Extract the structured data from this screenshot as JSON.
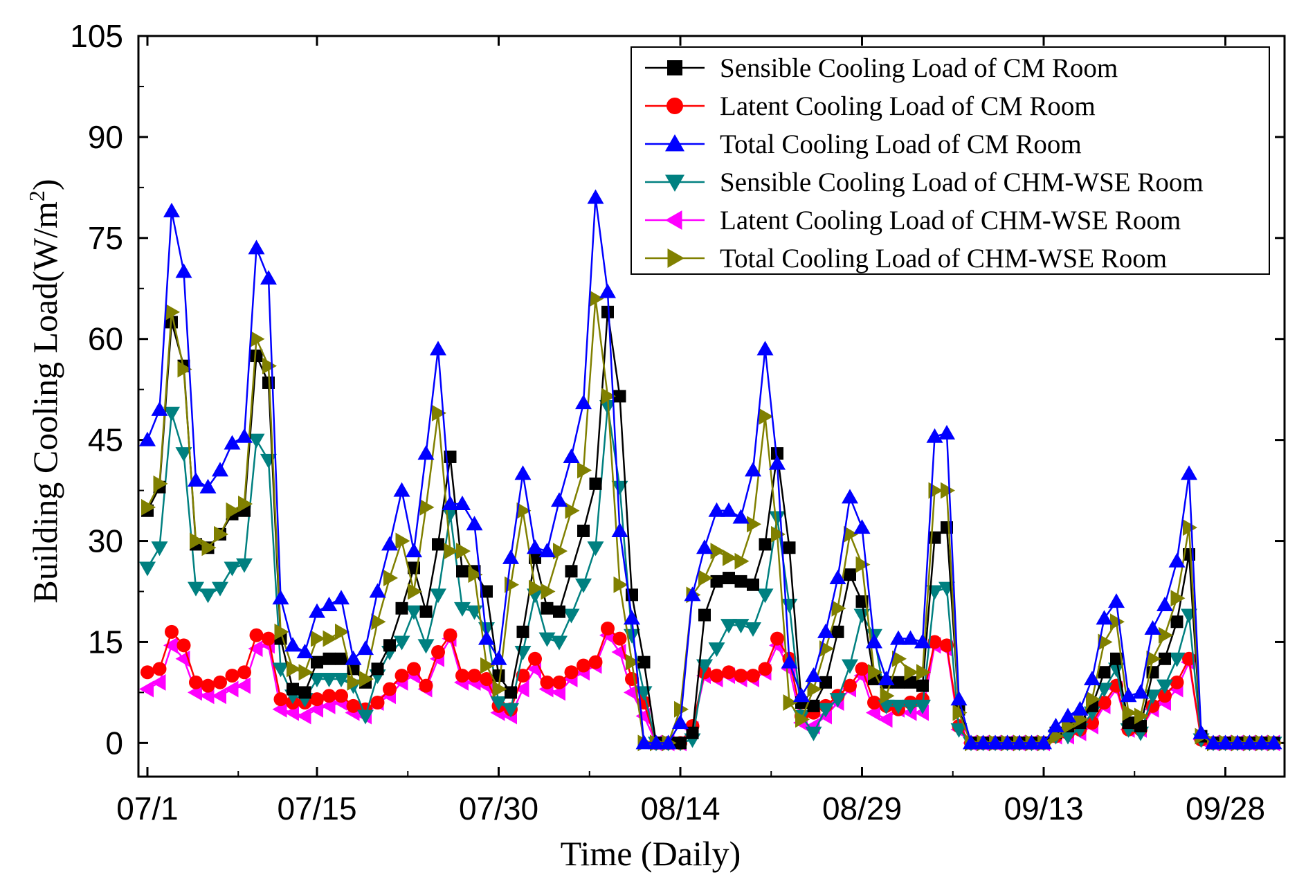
{
  "chart_data": {
    "type": "line",
    "title": "",
    "xlabel": "Time (Daily)",
    "ylabel_main": "Building Cooling Load",
    "ylabel_unit_open": "(W/m",
    "ylabel_unit_sup": "2",
    "ylabel_unit_close": ")",
    "ylim": [
      -5,
      105
    ],
    "yticks": [
      0,
      15,
      30,
      45,
      60,
      75,
      90,
      105
    ],
    "xlim": [
      0,
      94
    ],
    "xticks": [
      {
        "day": 1,
        "label": "07/1"
      },
      {
        "day": 15,
        "label": "07/15"
      },
      {
        "day": 30,
        "label": "07/30"
      },
      {
        "day": 45,
        "label": "08/14"
      },
      {
        "day": 60,
        "label": "08/29"
      },
      {
        "day": 75,
        "label": "09/13"
      },
      {
        "day": 90,
        "label": "09/28"
      }
    ],
    "legend_position": "top-right",
    "series": [
      {
        "name": "Sensible Cooling Load of CM Room",
        "color": "#000000",
        "marker": "square",
        "values": [
          34.5,
          38,
          62.5,
          56,
          29.5,
          29,
          31,
          34,
          34.5,
          57.5,
          53.5,
          15.5,
          8,
          7.5,
          12,
          12.5,
          12.5,
          11,
          9,
          11,
          14.5,
          20,
          26,
          19.5,
          29.5,
          42.5,
          25.5,
          25.5,
          22.5,
          10,
          7.5,
          16.5,
          27.5,
          20,
          19.5,
          25.5,
          31.5,
          38.5,
          64,
          51.5,
          22,
          12,
          0,
          0,
          0,
          1.5,
          19,
          24,
          24.5,
          24,
          23.5,
          29.5,
          43,
          29,
          6,
          5.5,
          9,
          16.5,
          25,
          21,
          9.5,
          9,
          9,
          9,
          8.5,
          30.5,
          32,
          5,
          0,
          0,
          0,
          0,
          0,
          0,
          0,
          1.5,
          2.5,
          3,
          5.5,
          10.5,
          12.5,
          3,
          2.5,
          10.5,
          12.5,
          18,
          28,
          1,
          0,
          0,
          0,
          0,
          0,
          0
        ]
      },
      {
        "name": "Latent Cooling Load of CM Room",
        "color": "#ff0000",
        "marker": "circle",
        "values": [
          10.5,
          11,
          16.5,
          14.5,
          9,
          8.5,
          9,
          10,
          10.5,
          16,
          15.5,
          6.5,
          6,
          6,
          6.5,
          7,
          7,
          5.5,
          5,
          6,
          8,
          10,
          11,
          8.5,
          13.5,
          16,
          10,
          10,
          9.5,
          5.5,
          5,
          10,
          12.5,
          9,
          9,
          10.5,
          11.5,
          12,
          17,
          15.5,
          9.5,
          6,
          0,
          0,
          0,
          2.5,
          10.5,
          10,
          10.5,
          10,
          10,
          11,
          15.5,
          12.5,
          4,
          4.5,
          5.5,
          7,
          8.5,
          11,
          6,
          5.5,
          5,
          6,
          6.5,
          15,
          14.5,
          2.5,
          0,
          0,
          0,
          0,
          0,
          0,
          0,
          1,
          1.5,
          2,
          3,
          6,
          8.5,
          2,
          2,
          5.5,
          7,
          9,
          12.5,
          0.5,
          0,
          0,
          0,
          0,
          0,
          0
        ]
      },
      {
        "name": "Total Cooling Load of CM  Room",
        "color": "#0000ff",
        "marker": "triangle-up",
        "values": [
          45,
          49.5,
          79,
          70,
          39,
          38,
          40.5,
          44.5,
          45.5,
          73.5,
          69,
          21.5,
          14.5,
          13.5,
          19.5,
          20.5,
          21.5,
          12.5,
          14,
          22.5,
          29.5,
          37.5,
          28.5,
          43,
          58.5,
          35.5,
          35.5,
          32.5,
          15.5,
          12.5,
          27.5,
          40,
          29,
          28.5,
          36,
          42.5,
          50.5,
          81,
          67,
          31.5,
          18.5,
          0,
          0,
          0,
          3,
          22,
          29,
          34.5,
          34.5,
          33.5,
          40.5,
          58.5,
          41.5,
          12,
          7,
          10,
          16.5,
          24.5,
          36.5,
          32,
          15,
          9.5,
          15.5,
          15.5,
          15,
          45.5,
          46,
          6.5,
          0,
          0,
          0,
          0,
          0,
          0,
          0,
          2.5,
          4,
          5,
          9.5,
          18.5,
          21,
          7,
          7.5,
          17,
          20.5,
          27,
          40,
          1.5,
          0,
          0,
          0,
          0,
          0,
          0
        ]
      },
      {
        "name": "Sensible Cooling Load of CHM-WSE Room",
        "color": "#008080",
        "marker": "triangle-down",
        "values": [
          26,
          29,
          49,
          43,
          23,
          22,
          23,
          26,
          26.5,
          45,
          42,
          11,
          7,
          6.5,
          9.5,
          9.5,
          9.5,
          8.5,
          4,
          10,
          13.5,
          15,
          19.5,
          14.5,
          22,
          34,
          20,
          19.5,
          17,
          6,
          5,
          13.5,
          22,
          15.5,
          15,
          19,
          23.5,
          29,
          50,
          38,
          16,
          7.5,
          0,
          0,
          0,
          0.5,
          11.5,
          14,
          17.5,
          17.5,
          17,
          22,
          33.5,
          20.5,
          4,
          1.5,
          5,
          6.5,
          11.5,
          19,
          16,
          5.5,
          5.5,
          5.5,
          5.5,
          22.5,
          23,
          2,
          0,
          0,
          0,
          0,
          0,
          0,
          0,
          1,
          1,
          2,
          4.5,
          8,
          11,
          2,
          1.5,
          7,
          8.5,
          12.5,
          19,
          0.5,
          0,
          0,
          0,
          0,
          0,
          0
        ]
      },
      {
        "name": "Latent Cooling Load of CHM-WSE Room",
        "color": "#ff00ff",
        "marker": "triangle-left",
        "values": [
          8,
          9,
          14.5,
          12.5,
          7.5,
          7,
          7,
          8,
          8.5,
          14,
          14.5,
          5,
          4.5,
          4,
          5,
          5.5,
          6,
          4.5,
          4,
          6,
          7,
          9,
          10,
          8,
          12.5,
          15.5,
          9,
          9,
          8.5,
          4.5,
          4,
          8,
          11,
          8,
          7.5,
          9.5,
          10.5,
          11.5,
          16,
          13.5,
          7.5,
          4,
          0,
          0,
          0,
          2,
          10,
          9.5,
          10,
          9.5,
          9.5,
          10.5,
          14.5,
          11,
          3,
          2.5,
          4,
          6,
          8,
          10,
          4.5,
          3.5,
          5,
          4.5,
          4.5,
          14.5,
          14,
          2,
          0,
          0,
          0,
          0,
          0,
          0,
          0,
          1,
          1,
          1.5,
          2.5,
          5.5,
          8,
          2,
          2,
          5,
          6,
          8,
          12,
          0.5,
          0,
          0,
          0,
          0,
          0,
          0
        ]
      },
      {
        "name": "Total Cooling Load of CHM-WSE Room",
        "color": "#808000",
        "marker": "triangle-right",
        "values": [
          35,
          38.5,
          64,
          55.5,
          30,
          29,
          31,
          34.5,
          35.5,
          60,
          56,
          16.5,
          11,
          10.5,
          15.5,
          15.5,
          16.5,
          9,
          9.5,
          18,
          24.5,
          30,
          22.5,
          35,
          49,
          28.5,
          28.5,
          25,
          11.5,
          8,
          23.5,
          34.5,
          23,
          22.5,
          28.5,
          34.5,
          40.5,
          66,
          51.5,
          23.5,
          12,
          0,
          0,
          0,
          5,
          22,
          24.5,
          28.5,
          27.5,
          27,
          32.5,
          48.5,
          31,
          6,
          3.5,
          8,
          14,
          20,
          31,
          26.5,
          10.5,
          7,
          12.5,
          10.5,
          10.5,
          37.5,
          37.5,
          4.5,
          0,
          0,
          0,
          0,
          0,
          0,
          0,
          1,
          2.5,
          3.5,
          6.5,
          15,
          18,
          4.5,
          4,
          12.5,
          16,
          21.5,
          32,
          1,
          0,
          0,
          0,
          0,
          0,
          0
        ]
      }
    ]
  }
}
